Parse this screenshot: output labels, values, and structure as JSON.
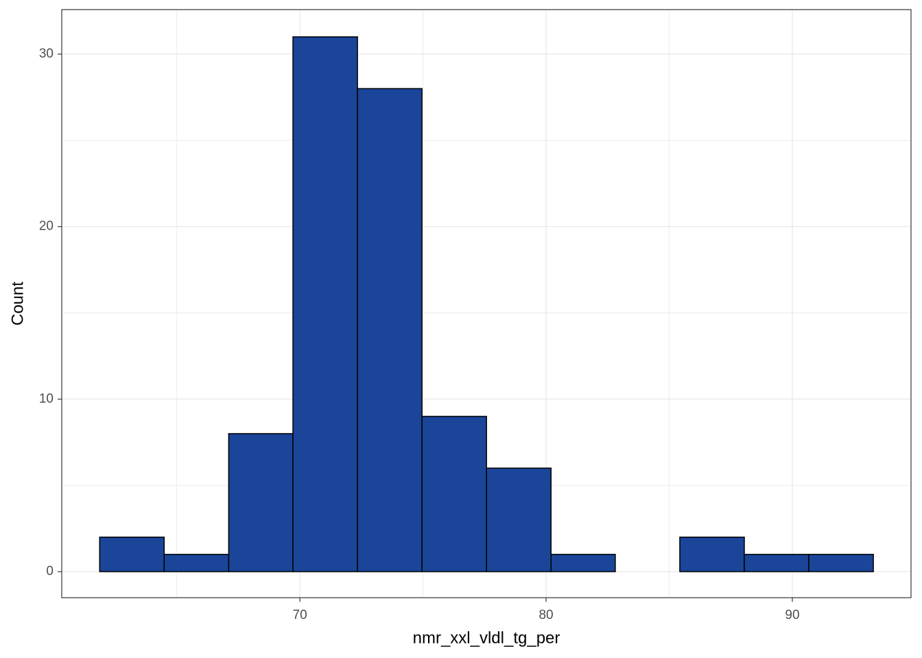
{
  "chart_data": {
    "type": "histogram",
    "x_label": "nmr_xxl_vldl_tg_per",
    "y_label": "Count",
    "bins": [
      61.87,
      64.49,
      67.11,
      69.72,
      72.34,
      74.96,
      77.58,
      80.2,
      82.81,
      85.43,
      88.05,
      90.67,
      93.29
    ],
    "values": [
      2,
      1,
      8,
      31,
      28,
      9,
      6,
      1,
      0,
      2,
      1,
      1
    ],
    "color": "#1a4599",
    "edge_color": "#000000",
    "xlim": [
      60.33,
      94.82
    ],
    "ylim": [
      -1.51,
      32.58
    ],
    "xticks": [
      70,
      80,
      90
    ],
    "yticks": [
      0,
      10,
      20,
      30
    ],
    "grid": true
  }
}
